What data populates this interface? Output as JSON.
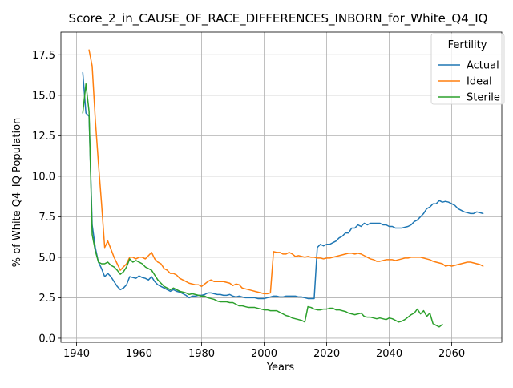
{
  "chart_data": {
    "type": "line",
    "title": "Score_2_in_CAUSE_OF_RACE_DIFFERENCES_INBORN_for_White_Q4_IQ",
    "xlabel": "Years",
    "ylabel": "% of White Q4_IQ Population",
    "xlim": [
      1935,
      2076
    ],
    "ylim": [
      -0.25,
      18.9
    ],
    "xticks": [
      1940,
      1960,
      1980,
      2000,
      2020,
      2040,
      2060
    ],
    "yticks": [
      0.0,
      2.5,
      5.0,
      7.5,
      10.0,
      12.5,
      15.0,
      17.5
    ],
    "xtick_labels": [
      "1940",
      "1960",
      "1980",
      "2000",
      "2020",
      "2040",
      "2060"
    ],
    "ytick_labels": [
      "0.0",
      "2.5",
      "5.0",
      "7.5",
      "10.0",
      "12.5",
      "15.0",
      "17.5"
    ],
    "grid": true,
    "legend": {
      "title": "Fertility",
      "placement": "top-right",
      "entries": [
        "Actual",
        "Ideal",
        "Sterile"
      ]
    },
    "series": [
      {
        "name": "Actual",
        "color": "#1f77b4",
        "x": [
          1942,
          1943,
          1944,
          1945,
          1946,
          1947,
          1948,
          1949,
          1950,
          1951,
          1952,
          1953,
          1954,
          1955,
          1956,
          1957,
          1958,
          1959,
          1960,
          1961,
          1962,
          1963,
          1964,
          1965,
          1966,
          1967,
          1968,
          1969,
          1970,
          1971,
          1972,
          1973,
          1974,
          1975,
          1976,
          1977,
          1978,
          1979,
          1980,
          1981,
          1982,
          1983,
          1984,
          1985,
          1986,
          1987,
          1988,
          1989,
          1990,
          1991,
          1992,
          1993,
          1994,
          1995,
          1996,
          1997,
          1998,
          1999,
          2000,
          2001,
          2002,
          2003,
          2004,
          2005,
          2006,
          2007,
          2008,
          2009,
          2010,
          2011,
          2012,
          2013,
          2014,
          2015,
          2016,
          2017,
          2018,
          2019,
          2020,
          2021,
          2022,
          2023,
          2024,
          2025,
          2026,
          2027,
          2028,
          2029,
          2030,
          2031,
          2032,
          2033,
          2034,
          2035,
          2036,
          2037,
          2038,
          2039,
          2040,
          2041,
          2042,
          2043,
          2044,
          2045,
          2046,
          2047,
          2048,
          2049,
          2050,
          2051,
          2052,
          2053,
          2054,
          2055,
          2056,
          2057,
          2058,
          2059,
          2060,
          2061,
          2062,
          2063,
          2064,
          2065,
          2066,
          2067,
          2068,
          2069,
          2070
        ],
        "values": [
          16.4,
          13.9,
          13.7,
          7.0,
          5.6,
          4.7,
          4.3,
          3.8,
          4.0,
          3.8,
          3.5,
          3.2,
          3.0,
          3.1,
          3.3,
          3.8,
          3.75,
          3.7,
          3.85,
          3.75,
          3.7,
          3.6,
          3.8,
          3.5,
          3.3,
          3.2,
          3.1,
          3.0,
          2.9,
          3.0,
          2.9,
          2.85,
          2.75,
          2.65,
          2.5,
          2.6,
          2.6,
          2.65,
          2.65,
          2.7,
          2.8,
          2.8,
          2.75,
          2.7,
          2.7,
          2.65,
          2.65,
          2.7,
          2.6,
          2.55,
          2.6,
          2.55,
          2.5,
          2.5,
          2.5,
          2.5,
          2.45,
          2.45,
          2.45,
          2.5,
          2.55,
          2.6,
          2.6,
          2.55,
          2.55,
          2.6,
          2.6,
          2.6,
          2.6,
          2.55,
          2.55,
          2.5,
          2.45,
          2.45,
          2.45,
          5.6,
          5.8,
          5.7,
          5.8,
          5.8,
          5.9,
          6.0,
          6.2,
          6.3,
          6.5,
          6.5,
          6.8,
          6.8,
          7.0,
          6.9,
          7.1,
          7.0,
          7.1,
          7.1,
          7.1,
          7.1,
          7.0,
          7.0,
          6.9,
          6.9,
          6.8,
          6.8,
          6.8,
          6.85,
          6.9,
          7.0,
          7.2,
          7.3,
          7.5,
          7.7,
          8.0,
          8.1,
          8.3,
          8.3,
          8.5,
          8.4,
          8.45,
          8.4,
          8.3,
          8.2,
          8.0,
          7.9,
          7.8,
          7.75,
          7.7,
          7.7,
          7.8,
          7.75,
          7.7
        ]
      },
      {
        "name": "Ideal",
        "color": "#ff7f0e",
        "x": [
          1944,
          1945,
          1946,
          1947,
          1948,
          1949,
          1950,
          1951,
          1952,
          1953,
          1954,
          1955,
          1956,
          1957,
          1958,
          1959,
          1960,
          1961,
          1962,
          1963,
          1964,
          1965,
          1966,
          1967,
          1968,
          1969,
          1970,
          1971,
          1972,
          1973,
          1974,
          1975,
          1976,
          1977,
          1978,
          1979,
          1980,
          1981,
          1982,
          1983,
          1984,
          1985,
          1986,
          1987,
          1988,
          1989,
          1990,
          1991,
          1992,
          1993,
          1994,
          1995,
          1996,
          1997,
          1998,
          1999,
          2000,
          2001,
          2002,
          2003,
          2004,
          2005,
          2006,
          2007,
          2008,
          2009,
          2010,
          2011,
          2012,
          2013,
          2014,
          2015,
          2016,
          2017,
          2018,
          2019,
          2020,
          2021,
          2022,
          2023,
          2024,
          2025,
          2026,
          2027,
          2028,
          2029,
          2030,
          2031,
          2032,
          2033,
          2034,
          2035,
          2036,
          2037,
          2038,
          2039,
          2040,
          2041,
          2042,
          2043,
          2044,
          2045,
          2046,
          2047,
          2048,
          2049,
          2050,
          2051,
          2052,
          2053,
          2054,
          2055,
          2056,
          2057,
          2058,
          2059,
          2060,
          2061,
          2062,
          2063,
          2064,
          2065,
          2066,
          2067,
          2068,
          2069,
          2070
        ],
        "values": [
          17.8,
          16.8,
          13.5,
          10.8,
          8.3,
          5.6,
          6.0,
          5.5,
          5.0,
          4.6,
          4.2,
          4.4,
          4.6,
          5.0,
          5.0,
          4.9,
          5.0,
          5.0,
          4.9,
          5.1,
          5.3,
          4.9,
          4.7,
          4.6,
          4.3,
          4.2,
          4.0,
          4.0,
          3.9,
          3.7,
          3.6,
          3.5,
          3.4,
          3.35,
          3.3,
          3.3,
          3.2,
          3.35,
          3.5,
          3.6,
          3.5,
          3.5,
          3.5,
          3.5,
          3.45,
          3.4,
          3.25,
          3.35,
          3.3,
          3.1,
          3.05,
          3.0,
          2.95,
          2.9,
          2.85,
          2.8,
          2.75,
          2.75,
          2.8,
          5.35,
          5.3,
          5.3,
          5.2,
          5.2,
          5.3,
          5.2,
          5.05,
          5.1,
          5.05,
          5.0,
          5.05,
          5.0,
          5.0,
          4.95,
          4.95,
          4.9,
          4.95,
          4.95,
          5.0,
          5.05,
          5.1,
          5.15,
          5.2,
          5.25,
          5.25,
          5.2,
          5.25,
          5.2,
          5.1,
          5.0,
          4.9,
          4.85,
          4.75,
          4.75,
          4.8,
          4.85,
          4.85,
          4.85,
          4.8,
          4.85,
          4.9,
          4.95,
          4.95,
          5.0,
          5.0,
          5.0,
          5.0,
          4.95,
          4.9,
          4.85,
          4.75,
          4.7,
          4.65,
          4.6,
          4.45,
          4.5,
          4.45,
          4.5,
          4.55,
          4.6,
          4.65,
          4.7,
          4.7,
          4.65,
          4.6,
          4.55,
          4.45
        ]
      },
      {
        "name": "Sterile",
        "color": "#2ca02c",
        "x": [
          1942,
          1943,
          1944,
          1945,
          1946,
          1947,
          1948,
          1949,
          1950,
          1951,
          1952,
          1953,
          1954,
          1955,
          1956,
          1957,
          1958,
          1959,
          1960,
          1961,
          1962,
          1963,
          1964,
          1965,
          1966,
          1967,
          1968,
          1969,
          1970,
          1971,
          1972,
          1973,
          1974,
          1975,
          1976,
          1977,
          1978,
          1979,
          1980,
          1981,
          1982,
          1983,
          1984,
          1985,
          1986,
          1987,
          1988,
          1989,
          1990,
          1991,
          1992,
          1993,
          1994,
          1995,
          1996,
          1997,
          1998,
          1999,
          2000,
          2001,
          2002,
          2003,
          2004,
          2005,
          2006,
          2007,
          2008,
          2009,
          2010,
          2011,
          2012,
          2013,
          2014,
          2015,
          2016,
          2017,
          2018,
          2019,
          2020,
          2021,
          2022,
          2023,
          2024,
          2025,
          2026,
          2027,
          2028,
          2029,
          2030,
          2031,
          2032,
          2033,
          2034,
          2035,
          2036,
          2037,
          2038,
          2039,
          2040,
          2041,
          2042,
          2043,
          2044,
          2045,
          2046,
          2047,
          2048,
          2049,
          2050,
          2051,
          2052,
          2053,
          2054,
          2055,
          2056,
          2057
        ],
        "values": [
          13.9,
          15.7,
          14.0,
          6.4,
          5.4,
          4.7,
          4.6,
          4.6,
          4.7,
          4.5,
          4.4,
          4.2,
          3.95,
          4.1,
          4.4,
          4.9,
          4.7,
          4.8,
          4.7,
          4.6,
          4.4,
          4.3,
          4.2,
          3.9,
          3.6,
          3.4,
          3.2,
          3.1,
          3.0,
          3.1,
          3.0,
          2.9,
          2.85,
          2.8,
          2.7,
          2.75,
          2.7,
          2.65,
          2.6,
          2.6,
          2.5,
          2.45,
          2.4,
          2.3,
          2.25,
          2.25,
          2.25,
          2.2,
          2.2,
          2.1,
          2.0,
          2.0,
          1.95,
          1.9,
          1.9,
          1.9,
          1.85,
          1.8,
          1.75,
          1.75,
          1.7,
          1.7,
          1.7,
          1.6,
          1.5,
          1.4,
          1.35,
          1.25,
          1.2,
          1.15,
          1.1,
          1.0,
          1.95,
          1.9,
          1.8,
          1.75,
          1.75,
          1.8,
          1.8,
          1.85,
          1.85,
          1.75,
          1.75,
          1.7,
          1.65,
          1.55,
          1.5,
          1.45,
          1.5,
          1.55,
          1.35,
          1.3,
          1.3,
          1.25,
          1.2,
          1.25,
          1.2,
          1.15,
          1.25,
          1.2,
          1.1,
          1.0,
          1.05,
          1.15,
          1.3,
          1.45,
          1.55,
          1.8,
          1.5,
          1.7,
          1.35,
          1.55,
          0.9,
          0.8,
          0.7,
          0.85
        ]
      }
    ]
  }
}
